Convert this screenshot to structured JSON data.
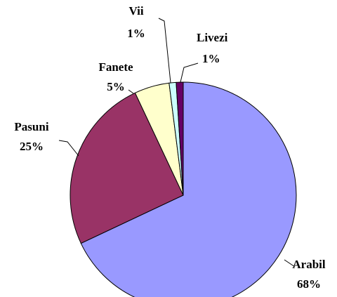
{
  "chart_data": {
    "type": "pie",
    "categories": [
      "Arabil",
      "Pasuni",
      "Fanete",
      "Vii",
      "Livezi"
    ],
    "values": [
      68,
      25,
      5,
      1,
      1
    ],
    "value_labels": [
      "68%",
      "25%",
      "5%",
      "1%",
      "1%"
    ],
    "colors": [
      "#9999ff",
      "#993366",
      "#ffffcc",
      "#ccffff",
      "#660066"
    ]
  }
}
